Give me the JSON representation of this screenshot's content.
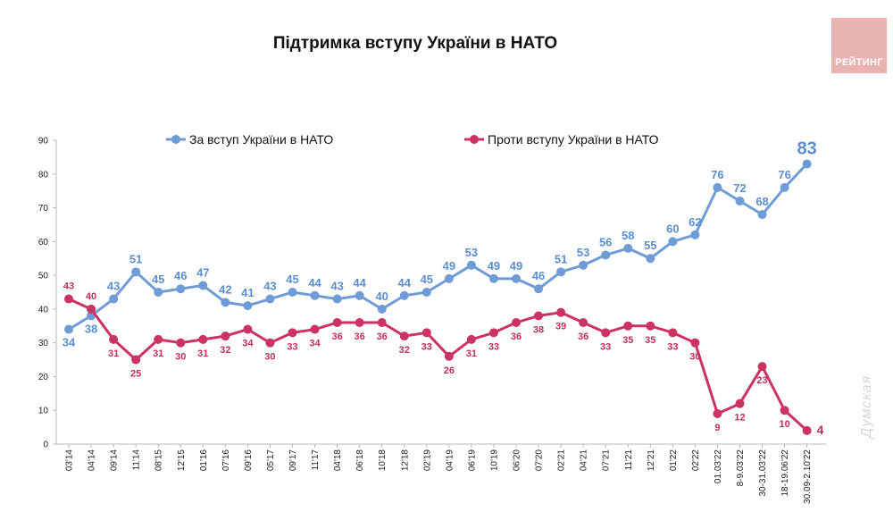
{
  "title": "Підтримка вступу України в НАТО",
  "logo": {
    "text": "РЕЙТИНГ"
  },
  "watermark": "Думская",
  "chart_data": {
    "type": "line",
    "title": "Підтримка вступу України в НАТО",
    "xlabel": "",
    "ylabel": "",
    "ylim": [
      0,
      90
    ],
    "yticks": [
      0,
      10,
      20,
      30,
      40,
      50,
      60,
      70,
      80,
      90
    ],
    "grid": false,
    "legend_position": "top",
    "categories": [
      "03'14",
      "04'14",
      "09'14",
      "11'14",
      "08'15",
      "12'15",
      "01'16",
      "07'16",
      "09'16",
      "05'17",
      "09'17",
      "11'17",
      "04'18",
      "06'18",
      "10'18",
      "12'18",
      "02'19",
      "04'19",
      "06'19",
      "10'19",
      "06'20",
      "07'20",
      "02'21",
      "04'21",
      "07'21",
      "11'21",
      "12'21",
      "01'22",
      "02'22",
      "01.03'22",
      "8-9.03'22",
      "30-31.03'22",
      "18-19.06'22",
      "30.09-2.10'22"
    ],
    "series": [
      {
        "name": "За вступ України в НАТО",
        "color": "#6f9bd6",
        "label_color": "#5b8fcf",
        "values": [
          34,
          38,
          43,
          51,
          45,
          46,
          47,
          42,
          41,
          43,
          45,
          44,
          43,
          44,
          40,
          44,
          45,
          49,
          53,
          49,
          49,
          46,
          51,
          53,
          56,
          58,
          55,
          60,
          62,
          76,
          72,
          68,
          76,
          83
        ]
      },
      {
        "name": "Проти вступу України в НАТО",
        "color": "#cc3262",
        "label_color": "#c0305a",
        "values": [
          43,
          40,
          31,
          25,
          31,
          30,
          31,
          32,
          34,
          30,
          33,
          34,
          36,
          36,
          36,
          32,
          33,
          26,
          31,
          33,
          36,
          38,
          39,
          36,
          33,
          35,
          35,
          33,
          30,
          9,
          12,
          23,
          10,
          4
        ]
      }
    ]
  }
}
